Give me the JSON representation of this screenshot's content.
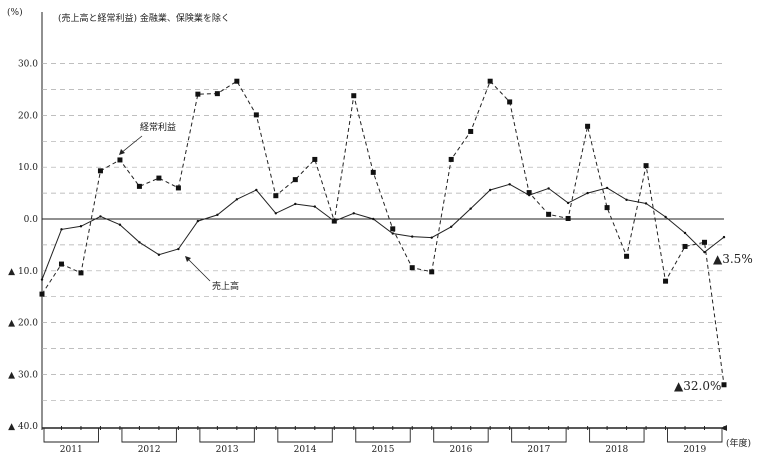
{
  "chart_data": {
    "type": "line",
    "note": "(売上高と経常利益) 金融業、保険業を除く",
    "y_unit": "(%)",
    "x_unit": "(年度)",
    "ylim": [
      -40,
      30
    ],
    "yticks": [
      {
        "value": 30,
        "label": "30.0"
      },
      {
        "value": 20,
        "label": "20.0"
      },
      {
        "value": 10,
        "label": "10.0"
      },
      {
        "value": 0,
        "label": "0.0"
      },
      {
        "value": -10,
        "label": "▲ 10.0"
      },
      {
        "value": -20,
        "label": "▲ 20.0"
      },
      {
        "value": -30,
        "label": "▲ 30.0"
      },
      {
        "value": -40,
        "label": "▲ 40.0"
      }
    ],
    "grid": true,
    "years": [
      "2011",
      "2012",
      "2013",
      "2014",
      "2015",
      "2016",
      "2017",
      "2018",
      "2019"
    ],
    "series": [
      {
        "name": "経常利益",
        "style": "dashed",
        "marker": "square",
        "values": [
          -14.5,
          -8.7,
          -10.4,
          9.3,
          11.4,
          6.3,
          7.9,
          6.0,
          24.1,
          24.2,
          26.6,
          20.1,
          4.5,
          7.6,
          11.5,
          -0.4,
          23.8,
          9.0,
          -1.9,
          -9.4,
          -10.2,
          11.5,
          16.9,
          26.6,
          22.6,
          5.1,
          0.9,
          0.1,
          17.9,
          2.2,
          -7.2,
          10.3,
          -12.0,
          -5.3,
          -4.5,
          -32.0
        ]
      },
      {
        "name": "売上高",
        "style": "solid",
        "marker": "none",
        "values": [
          -11.7,
          -2.0,
          -1.4,
          0.5,
          -1.1,
          -4.5,
          -6.9,
          -5.8,
          -0.4,
          0.8,
          3.8,
          5.6,
          1.1,
          2.9,
          2.4,
          -0.4,
          1.1,
          0.0,
          -2.8,
          -3.4,
          -3.6,
          -1.5,
          2.0,
          5.6,
          6.7,
          4.6,
          5.9,
          3.1,
          5.0,
          6.0,
          3.7,
          3.0,
          0.4,
          -2.7,
          -6.4,
          -3.5
        ]
      }
    ],
    "annotations": {
      "sales_last": "▲3.5%",
      "profit_last": "▲32.0%"
    }
  }
}
